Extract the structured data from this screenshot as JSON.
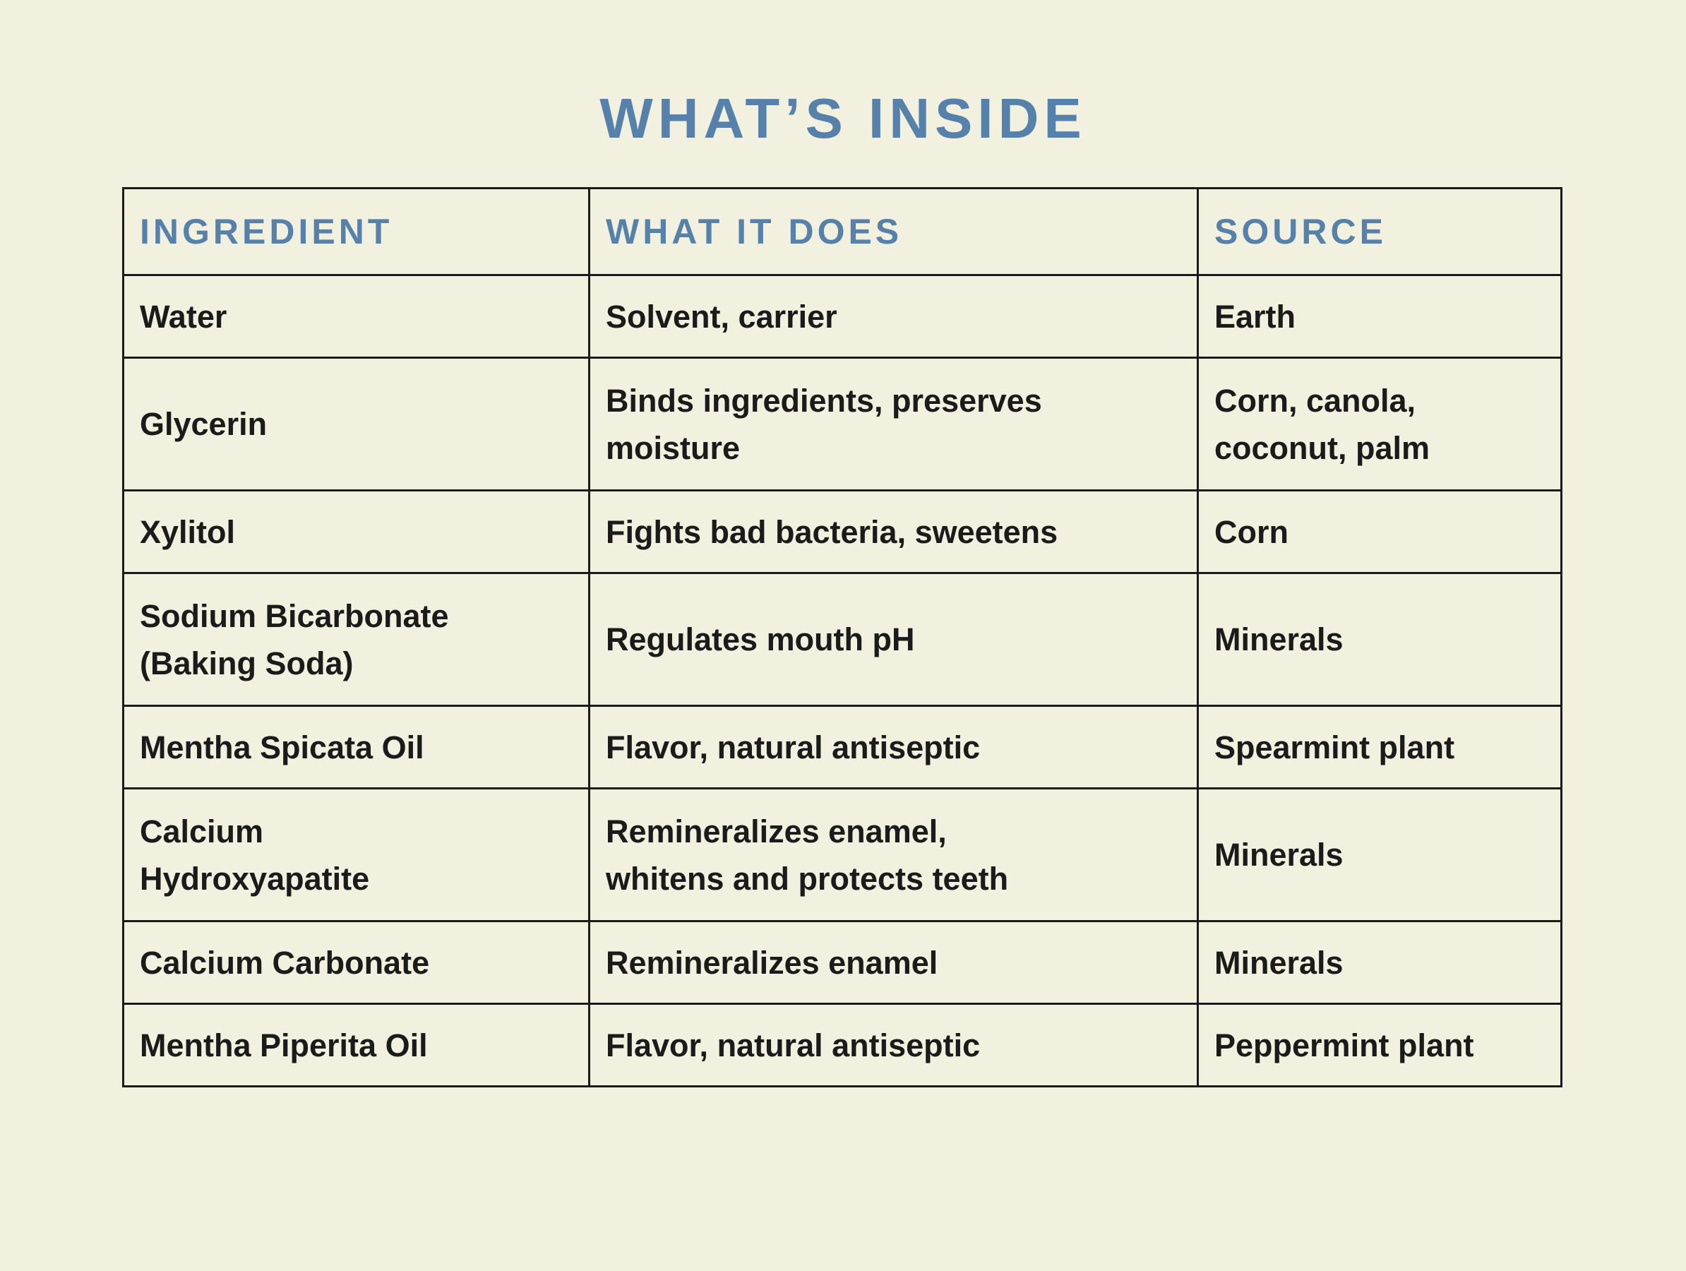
{
  "page": {
    "background_color": "#F2F0DF",
    "accent_color": "#5581AB",
    "text_color": "#1B1B1B",
    "border_color": "#1B1B1B"
  },
  "title": "WHAT’S INSIDE",
  "table": {
    "headers": [
      "INGREDIENT",
      "WHAT IT DOES",
      "SOURCE"
    ],
    "rows": [
      [
        "Water",
        "Solvent, carrier",
        "Earth"
      ],
      [
        "Glycerin",
        "Binds ingredients, preserves\nmoisture",
        "Corn, canola,\ncoconut, palm"
      ],
      [
        "Xylitol",
        "Fights bad bacteria, sweetens",
        "Corn"
      ],
      [
        "Sodium Bicarbonate\n(Baking Soda)",
        "Regulates mouth pH",
        "Minerals"
      ],
      [
        "Mentha Spicata Oil",
        "Flavor, natural antiseptic",
        "Spearmint plant"
      ],
      [
        "Calcium\nHydroxyapatite",
        "Remineralizes enamel,\nwhitens and protects teeth",
        "Minerals"
      ],
      [
        "Calcium Carbonate",
        "Remineralizes enamel",
        "Minerals"
      ],
      [
        "Mentha Piperita Oil",
        "Flavor, natural antiseptic",
        "Peppermint plant"
      ]
    ]
  }
}
